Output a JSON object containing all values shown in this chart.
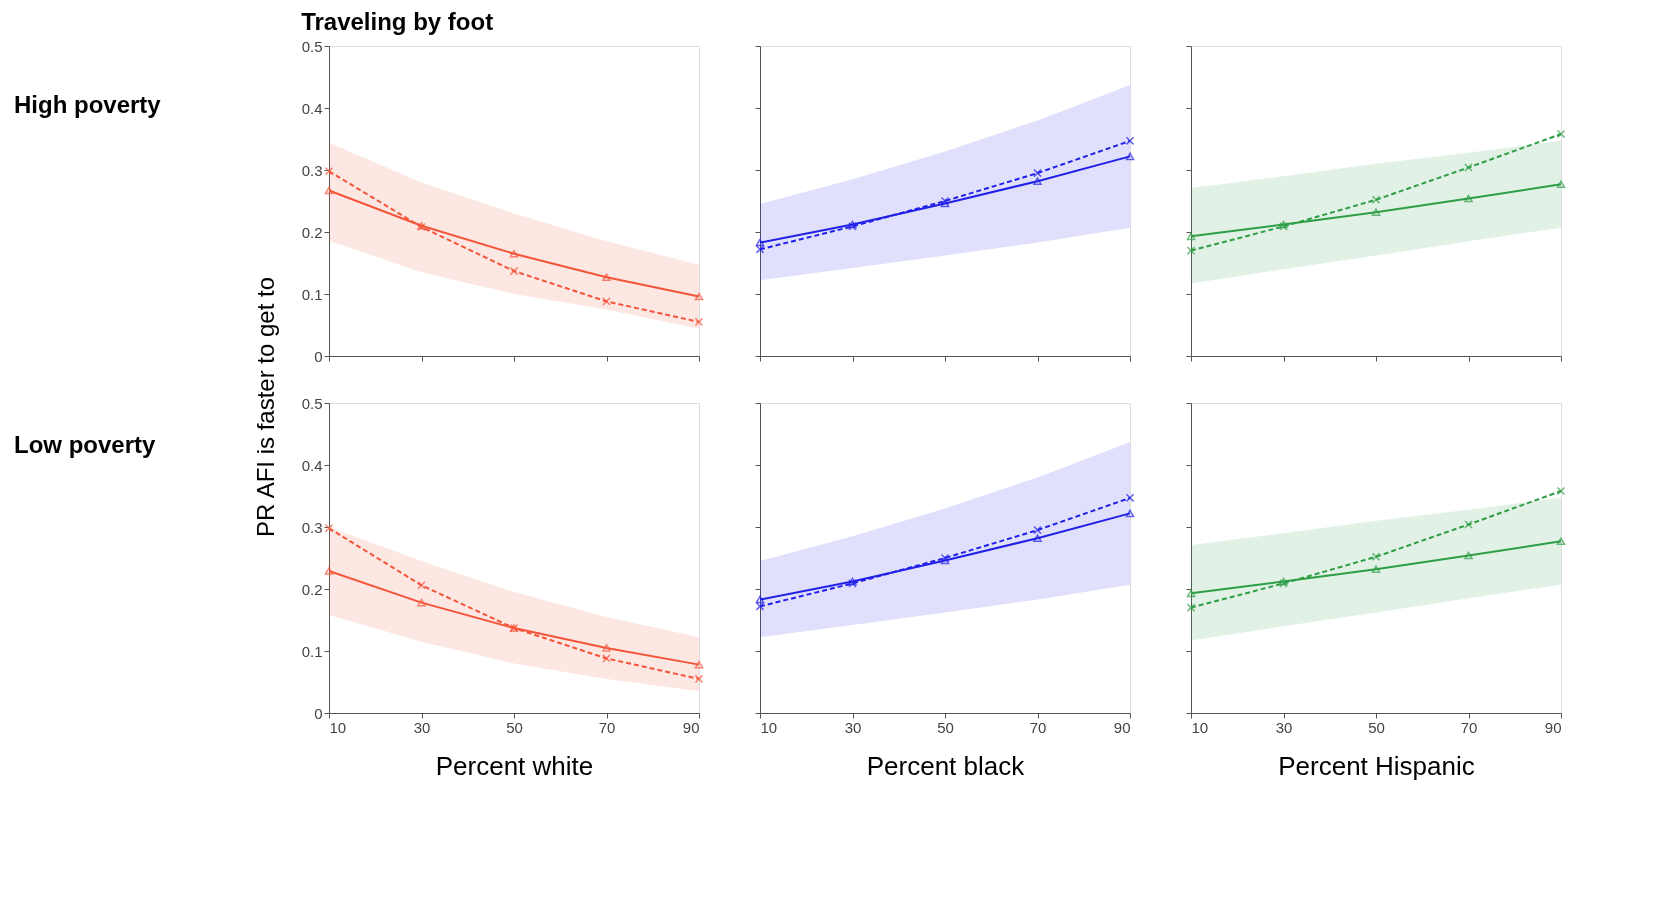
{
  "chart_data": [
    {
      "type": "line",
      "title": "Traveling by foot",
      "ylabel": "PR AFI is faster to get to",
      "annotations": [
        "High poverty"
      ],
      "x": [
        10,
        30,
        50,
        70,
        90
      ],
      "xlim": [
        10,
        90
      ],
      "xticks": [
        10,
        30,
        50,
        70,
        90
      ],
      "ylim": [
        0,
        0.5
      ],
      "yticks": [
        0,
        0.1,
        0.2,
        0.3,
        0.4,
        0.5
      ],
      "tick_labels": "y",
      "grid": false,
      "series": [
        {
          "color": "#f4553a",
          "marker": "triangle",
          "line_style": "solid",
          "values": [
            0.267,
            0.21,
            0.165,
            0.127,
            0.096
          ],
          "lower": [
            0.186,
            0.135,
            0.1,
            0.075,
            0.044
          ],
          "upper": [
            0.344,
            0.28,
            0.23,
            0.185,
            0.147
          ]
        },
        {
          "color": "#f4553a",
          "marker": "cross",
          "line_style": "dashed",
          "values": [
            0.298,
            0.208,
            0.137,
            0.088,
            0.055
          ]
        }
      ]
    },
    {
      "type": "line",
      "x": [
        10,
        30,
        50,
        70,
        90
      ],
      "xlim": [
        10,
        90
      ],
      "xticks": [
        10,
        30,
        50,
        70,
        90
      ],
      "ylim": [
        0,
        0.5
      ],
      "yticks": [
        0,
        0.1,
        0.2,
        0.3,
        0.4,
        0.5
      ],
      "tick_labels": false,
      "grid": false,
      "series": [
        {
          "color": "#2020e8",
          "marker": "triangle",
          "line_style": "solid",
          "values": [
            0.183,
            0.212,
            0.246,
            0.282,
            0.322
          ],
          "lower": [
            0.122,
            0.142,
            0.162,
            0.183,
            0.207
          ],
          "upper": [
            0.245,
            0.285,
            0.33,
            0.38,
            0.437
          ]
        },
        {
          "color": "#2020e8",
          "marker": "cross",
          "line_style": "dashed",
          "values": [
            0.172,
            0.209,
            0.25,
            0.295,
            0.347
          ]
        }
      ]
    },
    {
      "type": "line",
      "x": [
        10,
        30,
        50,
        70,
        90
      ],
      "xlim": [
        10,
        90
      ],
      "xticks": [
        10,
        30,
        50,
        70,
        90
      ],
      "ylim": [
        0,
        0.5
      ],
      "yticks": [
        0,
        0.1,
        0.2,
        0.3,
        0.4,
        0.5
      ],
      "tick_labels": false,
      "grid": false,
      "series": [
        {
          "color": "#2e9e46",
          "marker": "triangle",
          "line_style": "solid",
          "values": [
            0.193,
            0.212,
            0.232,
            0.254,
            0.277
          ],
          "lower": [
            0.117,
            0.14,
            0.162,
            0.185,
            0.207
          ],
          "upper": [
            0.271,
            0.29,
            0.31,
            0.328,
            0.347
          ]
        },
        {
          "color": "#2e9e46",
          "marker": "cross",
          "line_style": "dashed",
          "values": [
            0.17,
            0.209,
            0.252,
            0.304,
            0.358
          ]
        }
      ]
    },
    {
      "type": "line",
      "xlabel": "Percent white",
      "annotations": [
        "Low poverty"
      ],
      "x": [
        10,
        30,
        50,
        70,
        90
      ],
      "xlim": [
        10,
        90
      ],
      "xticks": [
        10,
        30,
        50,
        70,
        90
      ],
      "ylim": [
        0,
        0.5
      ],
      "yticks": [
        0,
        0.1,
        0.2,
        0.3,
        0.4,
        0.5
      ],
      "grid": false,
      "series": [
        {
          "color": "#f4553a",
          "marker": "triangle",
          "line_style": "solid",
          "values": [
            0.229,
            0.178,
            0.137,
            0.105,
            0.078
          ],
          "lower": [
            0.158,
            0.115,
            0.08,
            0.055,
            0.035
          ],
          "upper": [
            0.3,
            0.245,
            0.195,
            0.155,
            0.122
          ]
        },
        {
          "color": "#f4553a",
          "marker": "cross",
          "line_style": "dashed",
          "values": [
            0.298,
            0.206,
            0.137,
            0.088,
            0.055
          ]
        }
      ]
    },
    {
      "type": "line",
      "xlabel": "Percent black",
      "x": [
        10,
        30,
        50,
        70,
        90
      ],
      "xlim": [
        10,
        90
      ],
      "xticks": [
        10,
        30,
        50,
        70,
        90
      ],
      "ylim": [
        0,
        0.5
      ],
      "yticks": [
        0,
        0.1,
        0.2,
        0.3,
        0.4,
        0.5
      ],
      "tick_labels": "x",
      "grid": false,
      "series": [
        {
          "color": "#2020e8",
          "marker": "triangle",
          "line_style": "solid",
          "values": [
            0.183,
            0.212,
            0.246,
            0.282,
            0.322
          ],
          "lower": [
            0.122,
            0.142,
            0.162,
            0.183,
            0.207
          ],
          "upper": [
            0.245,
            0.285,
            0.33,
            0.38,
            0.437
          ]
        },
        {
          "color": "#2020e8",
          "marker": "cross",
          "line_style": "dashed",
          "values": [
            0.172,
            0.209,
            0.25,
            0.295,
            0.347
          ]
        }
      ]
    },
    {
      "type": "line",
      "xlabel": "Percent Hispanic",
      "x": [
        10,
        30,
        50,
        70,
        90
      ],
      "xlim": [
        10,
        90
      ],
      "xticks": [
        10,
        30,
        50,
        70,
        90
      ],
      "ylim": [
        0,
        0.5
      ],
      "yticks": [
        0,
        0.1,
        0.2,
        0.3,
        0.4,
        0.5
      ],
      "tick_labels": "x",
      "grid": false,
      "series": [
        {
          "color": "#2e9e46",
          "marker": "triangle",
          "line_style": "solid",
          "values": [
            0.193,
            0.212,
            0.232,
            0.254,
            0.277
          ],
          "lower": [
            0.117,
            0.14,
            0.162,
            0.185,
            0.207
          ],
          "upper": [
            0.271,
            0.29,
            0.31,
            0.328,
            0.347
          ]
        },
        {
          "color": "#2e9e46",
          "marker": "cross",
          "line_style": "dashed",
          "values": [
            0.17,
            0.209,
            0.252,
            0.304,
            0.358
          ]
        }
      ]
    }
  ]
}
